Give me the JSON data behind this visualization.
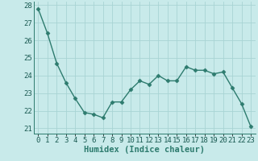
{
  "x": [
    0,
    1,
    2,
    3,
    4,
    5,
    6,
    7,
    8,
    9,
    10,
    11,
    12,
    13,
    14,
    15,
    16,
    17,
    18,
    19,
    20,
    21,
    22,
    23
  ],
  "y": [
    27.8,
    26.4,
    24.7,
    23.6,
    22.7,
    21.9,
    21.8,
    21.6,
    22.5,
    22.5,
    23.2,
    23.7,
    23.5,
    24.0,
    23.7,
    23.7,
    24.5,
    24.3,
    24.3,
    24.1,
    24.2,
    23.3,
    22.4,
    21.1
  ],
  "line_color": "#2d7b6e",
  "marker": "D",
  "marker_size": 2.5,
  "bg_color": "#c8eaea",
  "grid_color": "#a8d4d4",
  "xlabel": "Humidex (Indice chaleur)",
  "ylim": [
    20.7,
    28.2
  ],
  "xlim": [
    -0.5,
    23.5
  ],
  "yticks": [
    21,
    22,
    23,
    24,
    25,
    26,
    27,
    28
  ],
  "xticks": [
    0,
    1,
    2,
    3,
    4,
    5,
    6,
    7,
    8,
    9,
    10,
    11,
    12,
    13,
    14,
    15,
    16,
    17,
    18,
    19,
    20,
    21,
    22,
    23
  ],
  "xlabel_fontsize": 7.5,
  "tick_fontsize": 6.5,
  "line_width": 1.0
}
